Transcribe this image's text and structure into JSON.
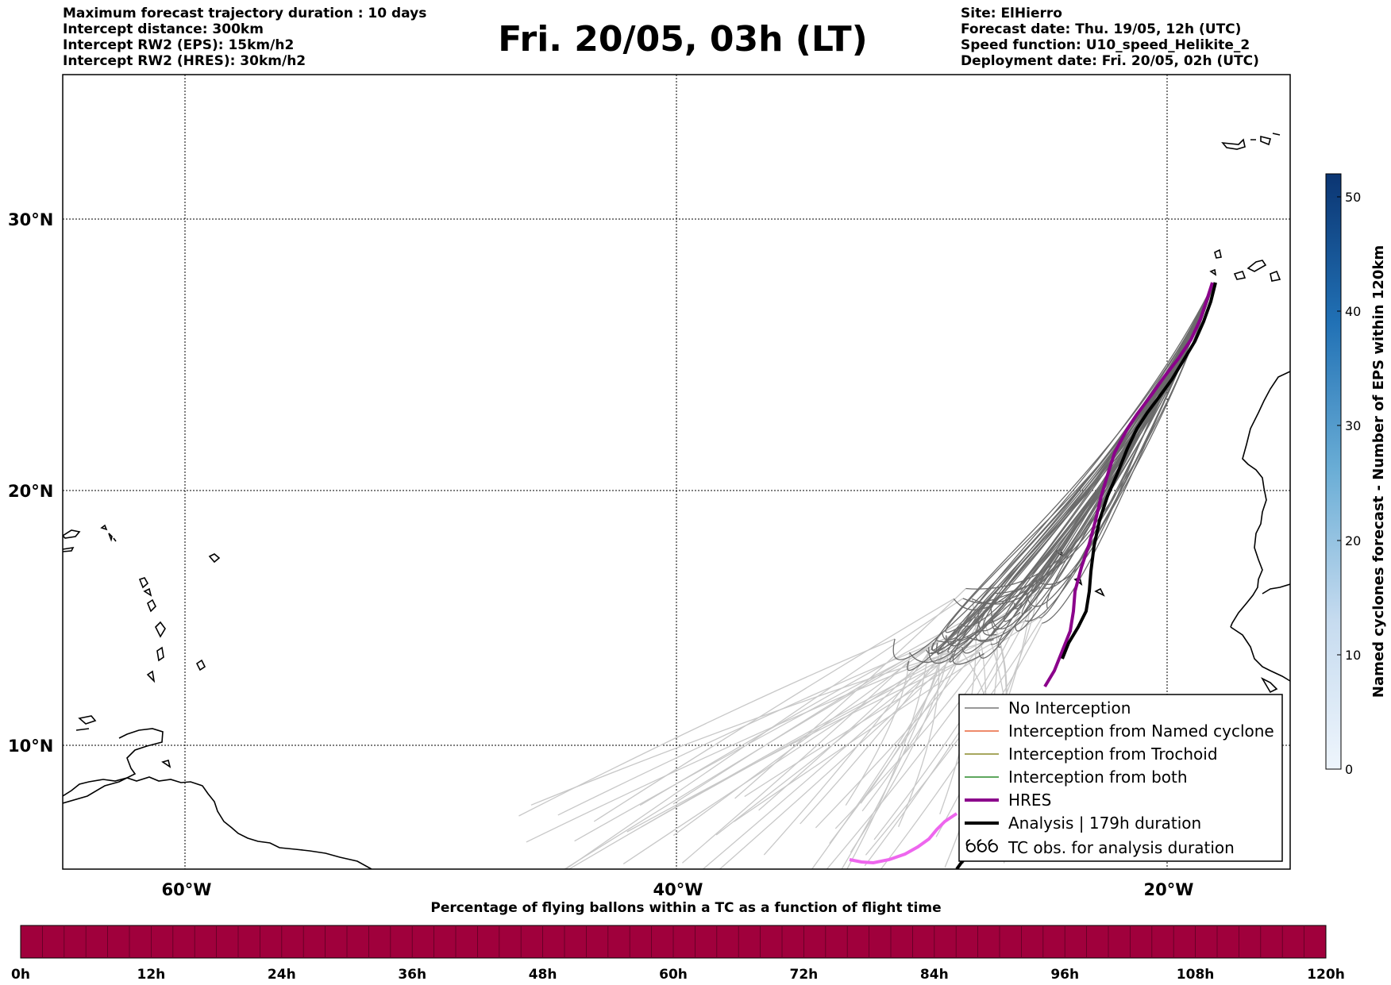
{
  "header": {
    "title": "Fri. 20/05, 03h (LT)",
    "left_lines": [
      "Maximum forecast trajectory duration : 10 days",
      "Intercept distance: 300km",
      "Intercept RW2 (EPS):  15km/h2",
      "Intercept RW2 (HRES): 30km/h2"
    ],
    "right_lines": [
      "Site: ElHierro",
      "Forecast date: Thu. 19/05, 12h (UTC)",
      "Speed function: U10_speed_Helikite_2",
      "Deployment date: Fri. 20/05, 02h (UTC)"
    ]
  },
  "map": {
    "lat_labels": [
      "30°N",
      "20°N",
      "10°N"
    ],
    "lon_labels": [
      "60°W",
      "40°W",
      "20°W"
    ],
    "gridlines": "dotted",
    "site": "ElHierro"
  },
  "legend": {
    "position": "bottom-right",
    "items": [
      {
        "label": "No Interception",
        "color": "#777777",
        "style": "thin-line"
      },
      {
        "label": "Interception from Named cyclone",
        "color": "#e8643a",
        "style": "thin-line"
      },
      {
        "label": "Interception from Trochoid",
        "color": "#8a8a2a",
        "style": "thin-line"
      },
      {
        "label": "Interception from both",
        "color": "#2a8a2a",
        "style": "thin-line"
      },
      {
        "label": "HRES",
        "color": "#8b008b",
        "style": "thick-line"
      },
      {
        "label": "Analysis | 179h duration",
        "color": "#000000",
        "style": "thick-line"
      },
      {
        "label": "TC obs. for analysis duration",
        "color": "#000000",
        "style": "cyclone-symbols"
      }
    ]
  },
  "colorbar": {
    "title": "Named cyclones forecast - Number of EPS within 120km",
    "ticks": [
      "0",
      "10",
      "20",
      "30",
      "40",
      "50"
    ],
    "range": [
      0,
      52
    ],
    "colormap": "Blues"
  },
  "bottom_bar": {
    "title": "Percentage of flying ballons within a TC as a function of flight time",
    "ticks": [
      "0h",
      "12h",
      "24h",
      "36h",
      "48h",
      "60h",
      "72h",
      "84h",
      "96h",
      "108h",
      "120h"
    ],
    "fill_color": "#a0003c",
    "segments": 60
  },
  "colors": {
    "eps_near": "#6b6b6b",
    "eps_far": "#c8c8c8",
    "hres": "#8b008b",
    "hres_late": "#ee66ee",
    "analysis": "#000000"
  }
}
